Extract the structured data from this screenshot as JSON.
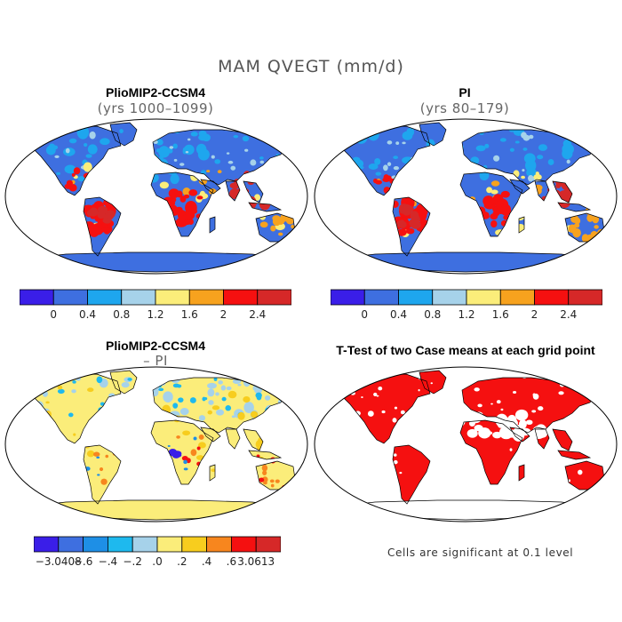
{
  "figure": {
    "title": "MAM QVEGT (mm/d)"
  },
  "panels": [
    {
      "id": "top-left",
      "title": "PlioMIP2-CCSM4",
      "subtitle": "(yrs 1000–1099)"
    },
    {
      "id": "top-right",
      "title": "PI",
      "subtitle": "(yrs 80–179)"
    },
    {
      "id": "bottom-left",
      "title": "PlioMIP2-CCSM4",
      "subtitle": "– PI"
    },
    {
      "id": "bottom-right",
      "title": "T-Test of two Case means at each grid point",
      "subtitle": ""
    }
  ],
  "colorbars": {
    "absolute": {
      "colors": [
        "#3a1ee8",
        "#3e6fe0",
        "#1ea6ee",
        "#a6d2ea",
        "#fbed7a",
        "#f7a21e",
        "#f51010",
        "#d62828"
      ],
      "labels": [
        "0",
        "0.4",
        "0.8",
        "1.2",
        "1.6",
        "2",
        "2.4"
      ]
    },
    "difference": {
      "colors": [
        "#3a1ee8",
        "#3e6fe0",
        "#1e8fe6",
        "#1eb9ee",
        "#a6d2ea",
        "#fbed7a",
        "#f7cd1e",
        "#f7861e",
        "#f51010",
        "#d62828"
      ],
      "labels": [
        "−3.0408",
        "−.6",
        "−.4",
        "−.2",
        ".0",
        ".2",
        ".4",
        ".6",
        "3.0613"
      ]
    }
  },
  "map_fills": {
    "ocean": "#ffffff",
    "land_absolute_base": "#3e6fe0",
    "land_difference_base": "#fbed7a",
    "significant": "#f51010",
    "coastline": "#000000"
  },
  "significance_note": "Cells are significant at 0.1 level"
}
